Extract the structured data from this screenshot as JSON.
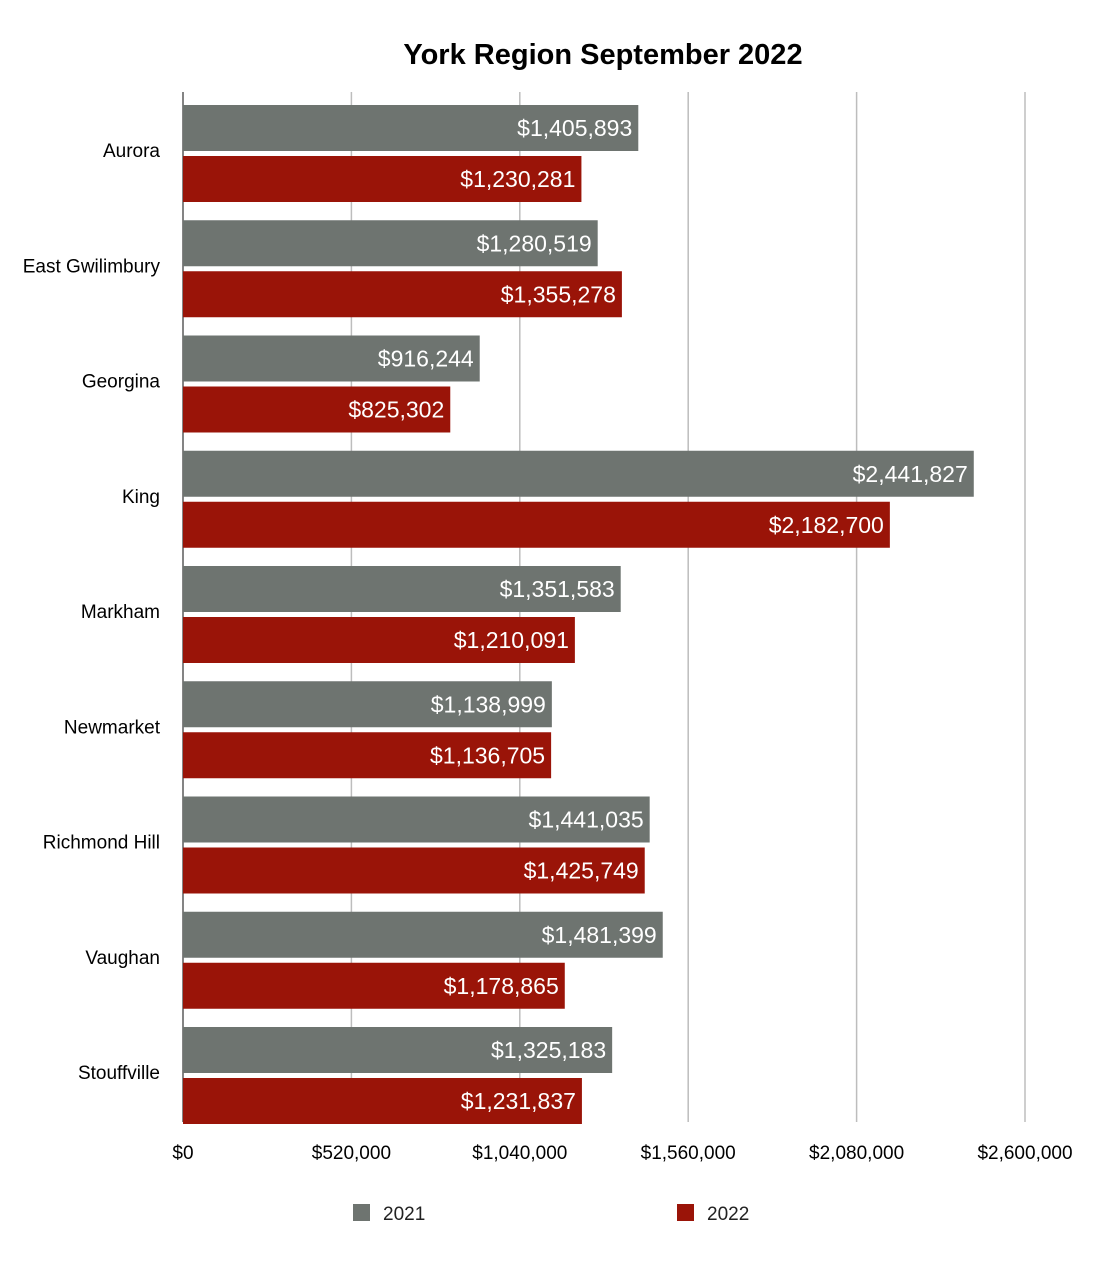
{
  "chart_data": {
    "type": "bar",
    "orientation": "horizontal",
    "title": "York Region September 2022",
    "xlabel": "",
    "ylabel": "",
    "categories": [
      "Aurora",
      "East Gwilimbury",
      "Georgina",
      "King",
      "Markham",
      "Newmarket",
      "Richmond Hill",
      "Vaughan",
      "Stouffville"
    ],
    "series": [
      {
        "name": "2021",
        "color": "#6e7470",
        "values": [
          1405893,
          1280519,
          916244,
          2441827,
          1351583,
          1138999,
          1441035,
          1481399,
          1325183
        ],
        "labels": [
          "$1,405,893",
          "$1,280,519",
          "$916,244",
          "$2,441,827",
          "$1,351,583",
          "$1,138,999",
          "$1,441,035",
          "$1,481,399",
          "$1,325,183"
        ]
      },
      {
        "name": "2022",
        "color": "#9a1408",
        "values": [
          1230281,
          1355278,
          825302,
          2182700,
          1210091,
          1136705,
          1425749,
          1178865,
          1231837
        ],
        "labels": [
          "$1,230,281",
          "$1,355,278",
          "$825,302",
          "$2,182,700",
          "$1,210,091",
          "$1,136,705",
          "$1,425,749",
          "$1,178,865",
          "$1,231,837"
        ]
      }
    ],
    "xlim": [
      0,
      2600000
    ],
    "x_ticks": [
      0,
      520000,
      1040000,
      1560000,
      2080000,
      2600000
    ],
    "x_tick_labels": [
      "$0",
      "$520,000",
      "$1,040,000",
      "$1,560,000",
      "$2,080,000",
      "$2,600,000"
    ],
    "grid": true,
    "legend_position": "bottom"
  }
}
